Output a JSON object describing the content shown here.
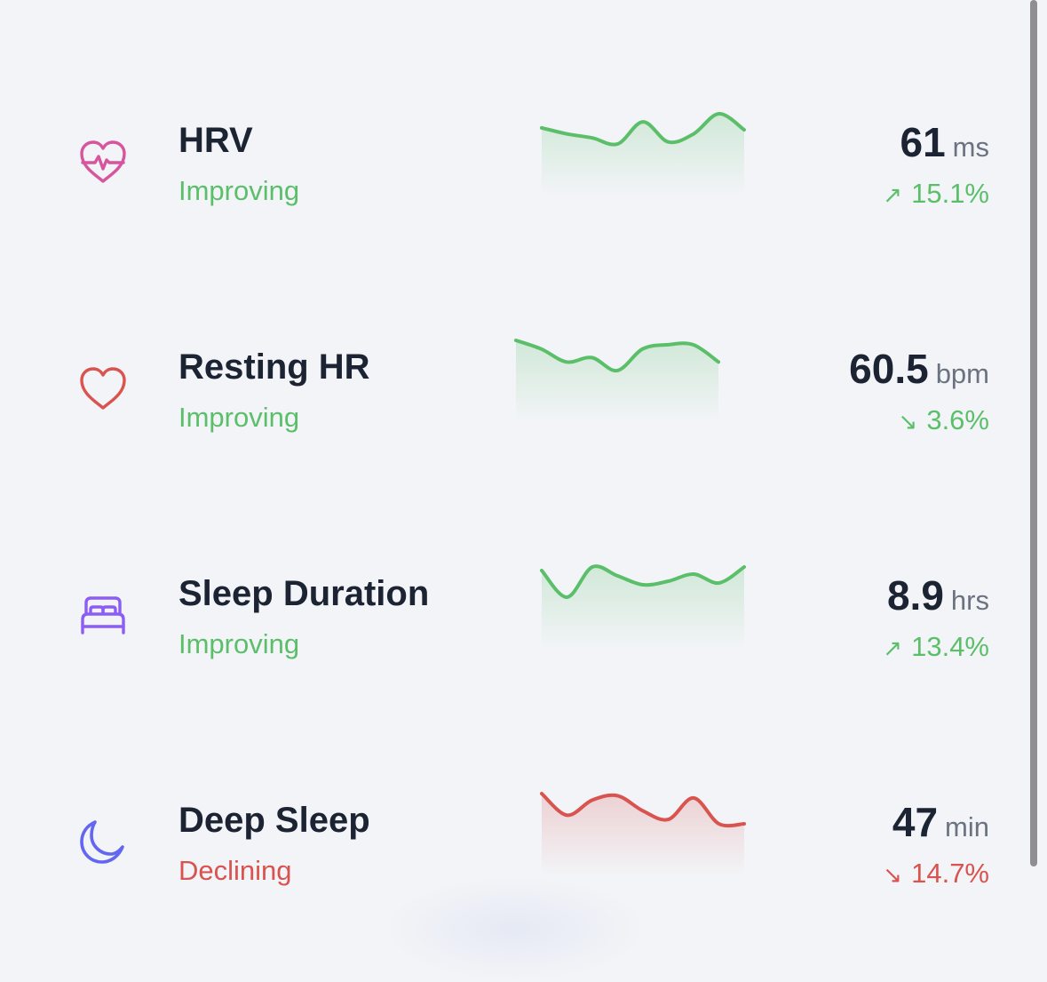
{
  "colors": {
    "improving": "#5bbf6a",
    "declining": "#d9534f",
    "title": "#1c2333",
    "unit": "#6b7280",
    "hrv_icon": "#d6559d",
    "resting_hr_icon": "#d9534f",
    "sleep_icon": "#8b5cf6",
    "deep_sleep_icon": "#6366f1"
  },
  "metrics": [
    {
      "name": "HRV",
      "status": "Improving",
      "value": "61",
      "unit": "ms",
      "change": "15.1%",
      "direction": "up",
      "trend": "improving",
      "icon": "heart-pulse-icon",
      "sparkline": [
        55,
        52,
        50,
        47,
        58,
        48,
        52,
        62,
        54
      ]
    },
    {
      "name": "Resting HR",
      "status": "Improving",
      "value": "60.5",
      "unit": "bpm",
      "change": "3.6%",
      "direction": "down",
      "trend": "improving",
      "icon": "heart-icon",
      "sparkline": [
        62,
        61,
        59.5,
        60,
        58.5,
        61,
        61.5,
        61.5,
        59.5
      ]
    },
    {
      "name": "Sleep Duration",
      "status": "Improving",
      "value": "8.9",
      "unit": "hrs",
      "change": "13.4%",
      "direction": "up",
      "trend": "improving",
      "icon": "bed-icon",
      "sparkline": [
        60,
        45,
        62,
        57,
        52,
        54,
        58,
        53,
        62
      ]
    },
    {
      "name": "Deep Sleep",
      "status": "Declining",
      "value": "47",
      "unit": "min",
      "change": "14.7%",
      "direction": "down",
      "trend": "declining",
      "icon": "moon-icon",
      "sparkline": [
        58,
        48,
        55,
        57,
        50,
        46,
        56,
        44,
        44
      ]
    }
  ]
}
